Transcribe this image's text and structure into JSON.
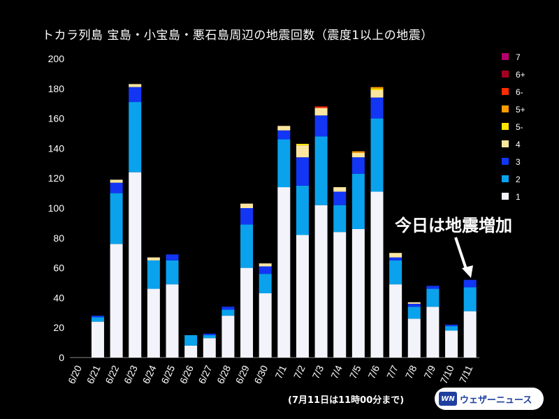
{
  "title": "トカラ列島 宝島・小宝島・悪石島周辺の地震回数（震度1以上の地震）",
  "annotation": "今日は地震増加",
  "footnote": "(7月11日は11時00分まで)",
  "logo": {
    "mark": "WN",
    "text": "ウェザーニュース"
  },
  "colors": {
    "background": "#000000",
    "1": "#f3f3fb",
    "2": "#0aa2ec",
    "3": "#1236f4",
    "4": "#fbe6a0",
    "5-": "#ffe600",
    "5+": "#ff9c00",
    "6-": "#ff2c00",
    "6+": "#a50021",
    "7": "#b40068"
  },
  "chart_data": {
    "type": "bar",
    "stacked": true,
    "title": "トカラ列島 宝島・小宝島・悪石島周辺の地震回数（震度1以上の地震）",
    "ylim": [
      0,
      200
    ],
    "yticks": [
      0,
      20,
      40,
      60,
      80,
      100,
      120,
      140,
      160,
      180,
      200
    ],
    "grid": false,
    "legend_position": "right",
    "categories": [
      "6/20",
      "6/21",
      "6/22",
      "6/23",
      "6/24",
      "6/25",
      "6/26",
      "6/27",
      "6/28",
      "6/29",
      "6/30",
      "7/1",
      "7/2",
      "7/3",
      "7/4",
      "7/5",
      "7/6",
      "7/7",
      "7/8",
      "7/9",
      "7/10",
      "7/11"
    ],
    "series": [
      {
        "name": "1",
        "values": [
          0,
          24,
          76,
          124,
          46,
          49,
          8,
          13,
          28,
          60,
          43,
          114,
          82,
          102,
          84,
          86,
          111,
          49,
          26,
          34,
          18,
          31
        ]
      },
      {
        "name": "2",
        "values": [
          0,
          3,
          34,
          47,
          19,
          16,
          7,
          2,
          4,
          29,
          13,
          32,
          33,
          46,
          18,
          37,
          49,
          16,
          8,
          12,
          3,
          16
        ]
      },
      {
        "name": "3",
        "values": [
          0,
          1,
          7,
          10,
          0,
          4,
          0,
          1,
          2,
          11,
          5,
          6,
          19,
          14,
          9,
          11,
          14,
          2,
          2,
          2,
          1,
          5
        ]
      },
      {
        "name": "4",
        "values": [
          0,
          0,
          2,
          2,
          2,
          0,
          0,
          0,
          0,
          3,
          2,
          3,
          8,
          5,
          3,
          3,
          5,
          3,
          1,
          0,
          0,
          0
        ]
      },
      {
        "name": "5-",
        "values": [
          0,
          0,
          0,
          0,
          0,
          0,
          0,
          0,
          0,
          0,
          0,
          0,
          1,
          0,
          0,
          0,
          1,
          0,
          0,
          0,
          0,
          0
        ]
      },
      {
        "name": "5+",
        "values": [
          0,
          0,
          0,
          0,
          0,
          0,
          0,
          0,
          0,
          0,
          0,
          0,
          0,
          0,
          0,
          1,
          1,
          0,
          0,
          0,
          0,
          0
        ]
      },
      {
        "name": "6-",
        "values": [
          0,
          0,
          0,
          0,
          0,
          0,
          0,
          0,
          0,
          0,
          0,
          0,
          0,
          1,
          0,
          0,
          0,
          0,
          0,
          0,
          0,
          0
        ]
      },
      {
        "name": "6+",
        "values": [
          0,
          0,
          0,
          0,
          0,
          0,
          0,
          0,
          0,
          0,
          0,
          0,
          0,
          0,
          0,
          0,
          0,
          0,
          0,
          0,
          0,
          0
        ]
      },
      {
        "name": "7",
        "values": [
          0,
          0,
          0,
          0,
          0,
          0,
          0,
          0,
          0,
          0,
          0,
          0,
          0,
          0,
          0,
          0,
          0,
          0,
          0,
          0,
          0,
          0
        ]
      }
    ],
    "legend_order": [
      "7",
      "6+",
      "6-",
      "5+",
      "5-",
      "4",
      "3",
      "2",
      "1"
    ]
  }
}
